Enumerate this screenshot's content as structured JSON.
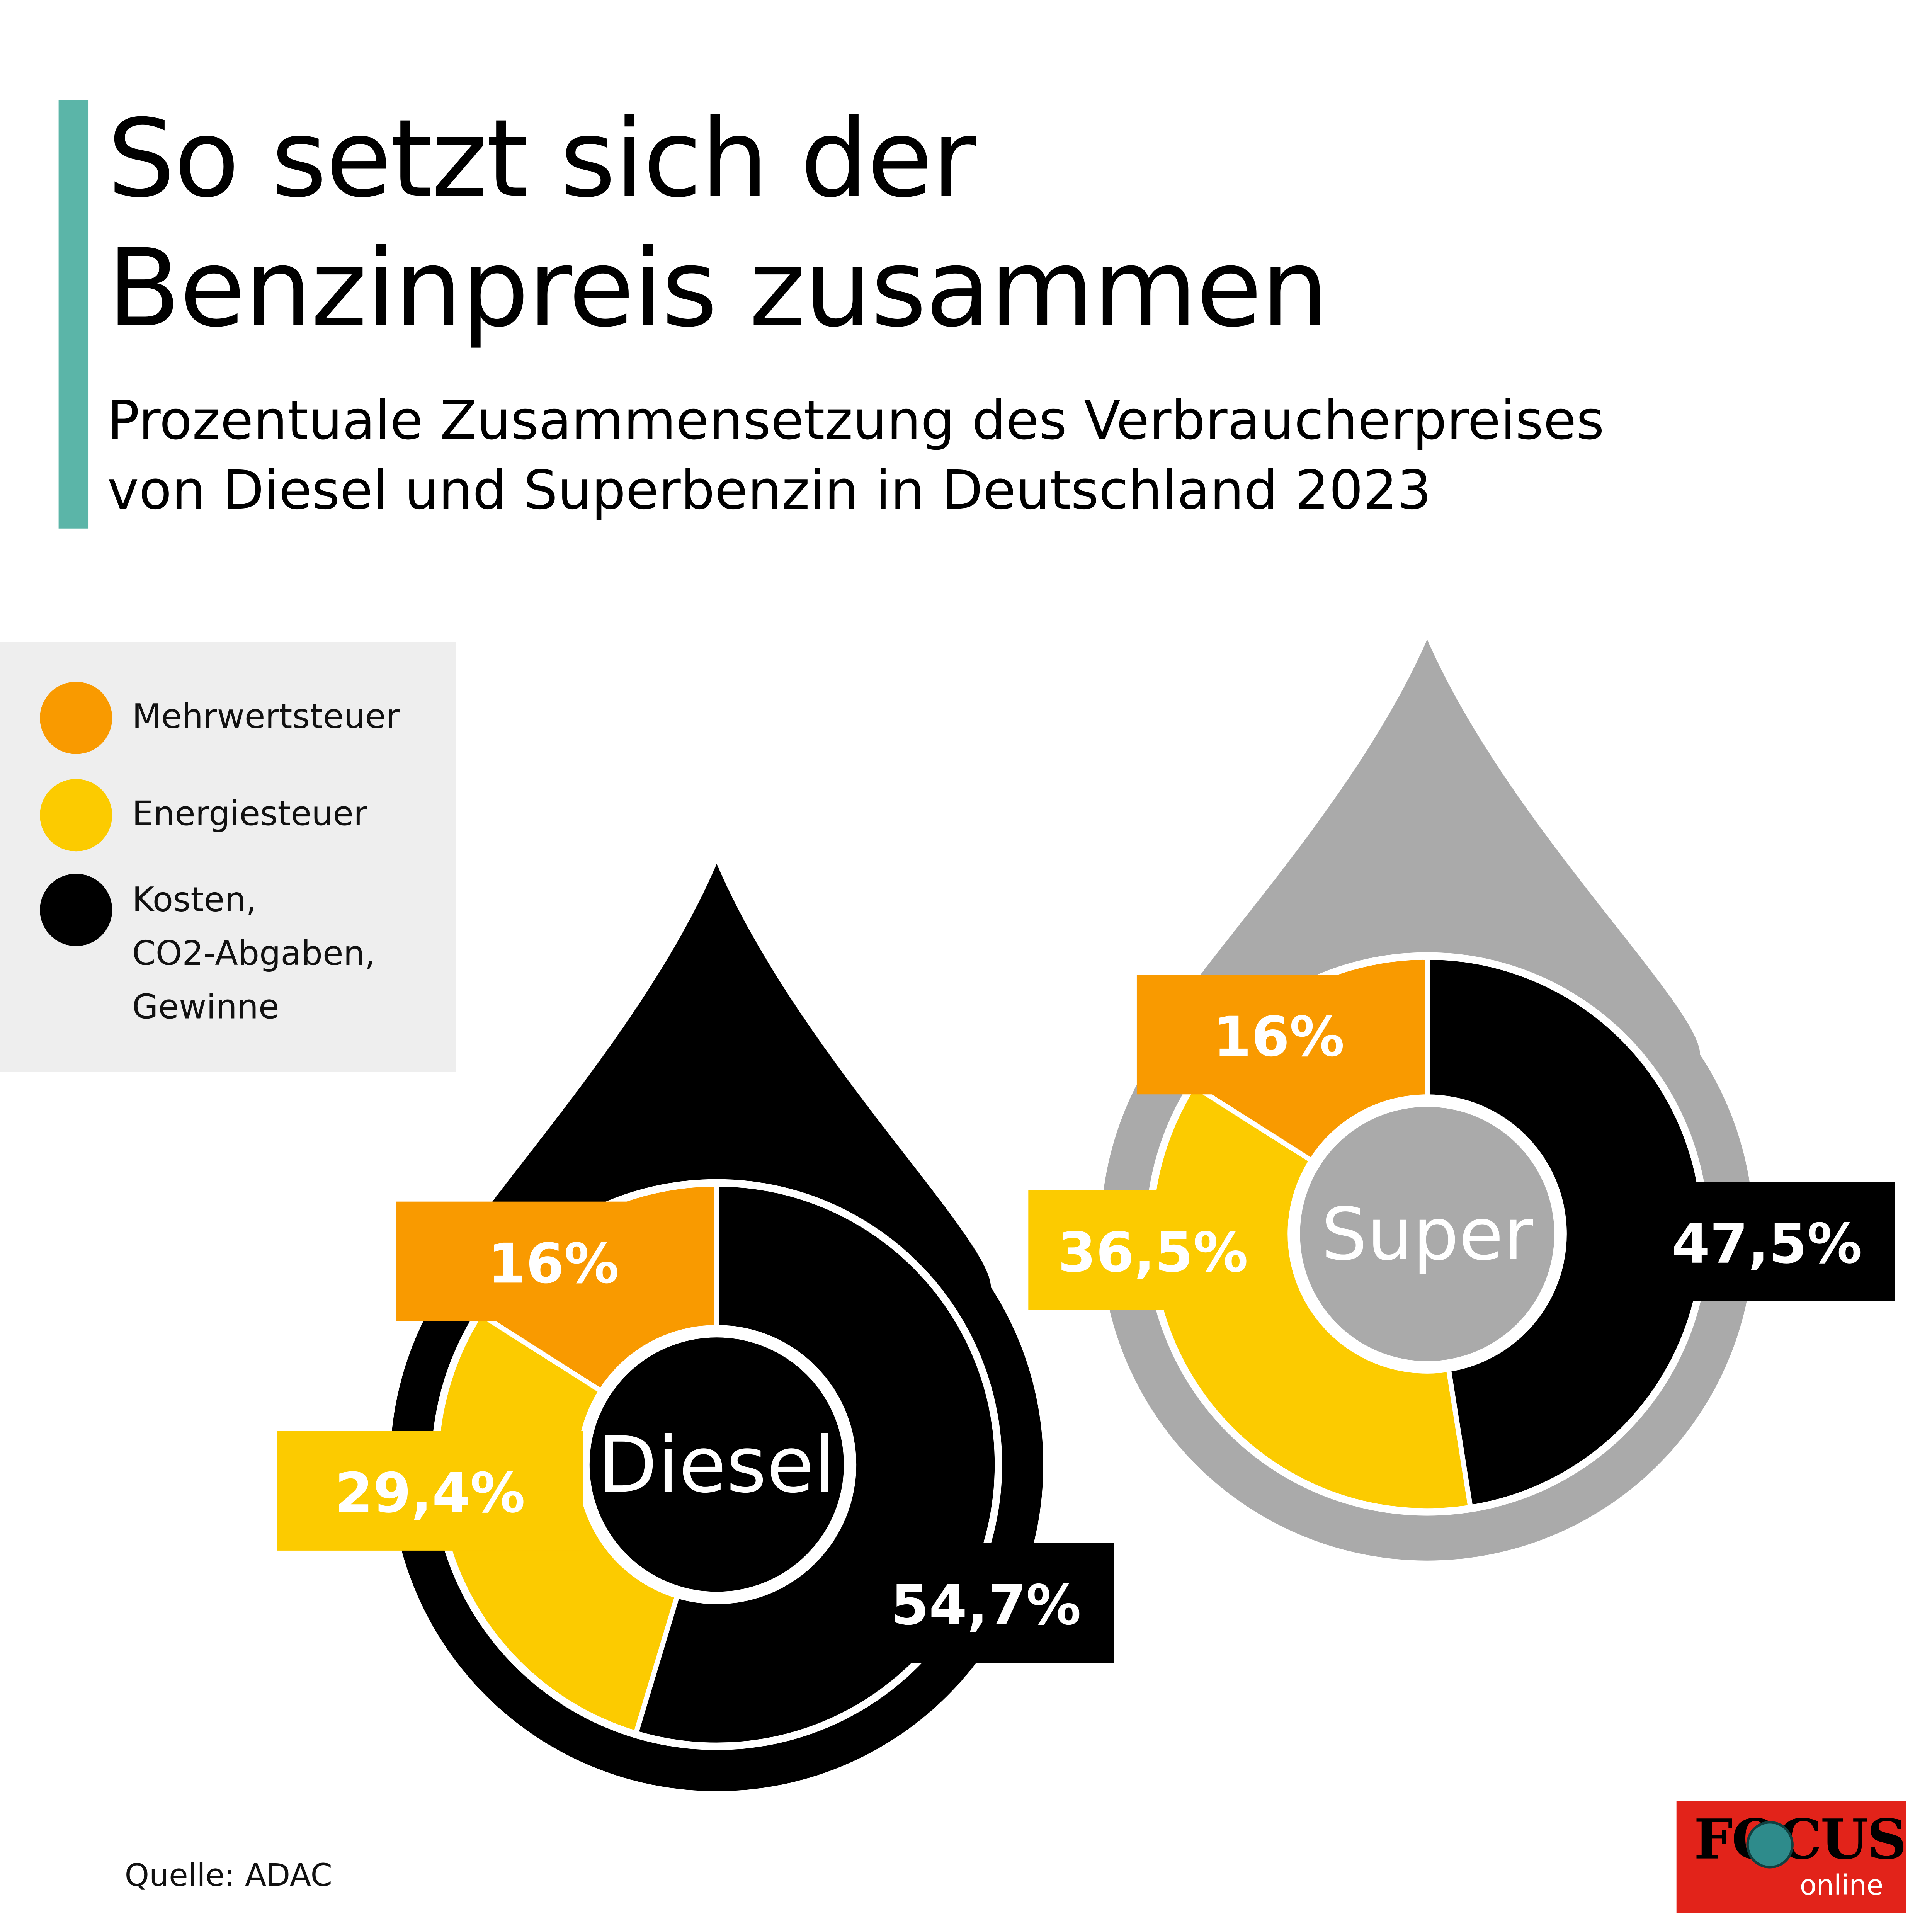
{
  "header": {
    "title_line1": "So setzt sich der",
    "title_line2": "Benzinpreis zusammen",
    "subtitle_line1": "Prozentuale Zusammensetzung des Verbraucherpreises",
    "subtitle_line2": "von Diesel und Superbenzin in Deutschland 2023"
  },
  "legend": {
    "items": [
      {
        "label": "Mehrwertsteuer",
        "color": "#f99a00"
      },
      {
        "label": "Energiesteuer",
        "color": "#fccb00"
      },
      {
        "label_lines": [
          "Kosten,",
          "CO2-Abgaben,",
          "Gewinne"
        ],
        "color": "#000000"
      }
    ]
  },
  "source": "Quelle: ADAC",
  "logo": {
    "word": "FOCUS",
    "sub": "online"
  },
  "chart_data": [
    {
      "type": "pie",
      "title": "Diesel",
      "drop_color": "#000000",
      "center_color": "#000000",
      "categories": [
        "Mehrwertsteuer",
        "Energiesteuer",
        "Kosten, CO2-Abgaben, Gewinne"
      ],
      "values": [
        16,
        29.4,
        54.7
      ],
      "value_labels": [
        "16%",
        "29,4%",
        "54,7%"
      ],
      "colors": [
        "#f99a00",
        "#fccb00",
        "#000000"
      ]
    },
    {
      "type": "pie",
      "title": "Super",
      "drop_color": "#aaaaaa",
      "center_color": "#aaaaaa",
      "categories": [
        "Mehrwertsteuer",
        "Energiesteuer",
        "Kosten, CO2-Abgaben, Gewinne"
      ],
      "values": [
        16,
        36.5,
        47.5
      ],
      "value_labels": [
        "16%",
        "36,5%",
        "47,5%"
      ],
      "colors": [
        "#f99a00",
        "#fccb00",
        "#000000"
      ]
    }
  ]
}
